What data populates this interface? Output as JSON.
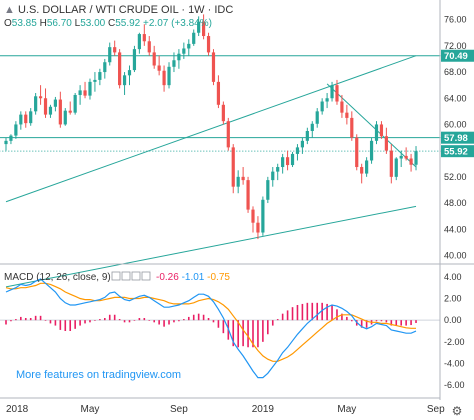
{
  "header": {
    "title": "U.S. DOLLAR / WTI CRUDE OIL · 1W · IDC",
    "ohlc": [
      {
        "k": "O",
        "v": "53.85"
      },
      {
        "k": "H",
        "v": "56.70"
      },
      {
        "k": "L",
        "v": "53.00"
      },
      {
        "k": "C",
        "v": "55.92"
      },
      {
        "k": "",
        "v": "+2.07 (+3.84%)"
      }
    ]
  },
  "macd_header": {
    "label": "MACD (12, 26, close, 9)",
    "values": [
      "-0.26",
      "-1.01",
      "-0.75"
    ]
  },
  "watermark": "More features on tradingview.com",
  "price_labels": [
    {
      "value": 70.49,
      "text": "70.49",
      "bg": "#26a69a"
    },
    {
      "value": 57.98,
      "text": "57.98",
      "bg": "#26a69a"
    },
    {
      "value": 55.92,
      "text": "55.92",
      "bg": "#26a69a"
    }
  ],
  "colors": {
    "up": "#26a69a",
    "down": "#ef5350",
    "trendline": "#26a69a",
    "macd": "#2196f3",
    "signal": "#ff9800",
    "hist": "#e91e63",
    "axis_text": "#333333"
  },
  "chart_data": [
    {
      "type": "candlestick",
      "title": "U.S. DOLLAR / WTI CRUDE OIL",
      "timeframe": "1W",
      "x": [
        "2018",
        "May",
        "Sep",
        "2019",
        "May",
        "Sep"
      ],
      "ylim": [
        39,
        79
      ],
      "yticks": [
        40,
        44,
        48,
        52,
        56,
        60,
        64,
        68,
        72,
        76
      ],
      "ohlc": [
        [
          57.0,
          58.0,
          56.0,
          57.5
        ],
        [
          57.5,
          58.5,
          57.0,
          58.3
        ],
        [
          58.3,
          60.5,
          57.8,
          60.0
        ],
        [
          60.0,
          62.0,
          59.2,
          61.5
        ],
        [
          61.5,
          62.0,
          59.5,
          60.2
        ],
        [
          60.2,
          62.5,
          59.8,
          62.0
        ],
        [
          62.0,
          64.8,
          61.5,
          64.3
        ],
        [
          64.3,
          66.0,
          63.0,
          64.0
        ],
        [
          64.0,
          65.5,
          61.0,
          61.5
        ],
        [
          61.5,
          63.0,
          61.0,
          62.7
        ],
        [
          62.7,
          64.2,
          62.0,
          63.8
        ],
        [
          63.8,
          65.0,
          59.5,
          60.0
        ],
        [
          60.0,
          62.5,
          59.8,
          62.1
        ],
        [
          62.1,
          63.5,
          61.5,
          61.8
        ],
        [
          61.8,
          64.8,
          61.5,
          64.5
        ],
        [
          64.5,
          66.0,
          63.0,
          65.2
        ],
        [
          65.2,
          66.5,
          64.0,
          64.4
        ],
        [
          64.4,
          67.0,
          63.8,
          66.5
        ],
        [
          66.5,
          68.0,
          65.0,
          66.8
        ],
        [
          66.8,
          68.5,
          66.0,
          68.0
        ],
        [
          68.0,
          70.0,
          67.0,
          69.5
        ],
        [
          69.5,
          72.5,
          69.0,
          71.8
        ],
        [
          71.8,
          72.8,
          70.5,
          71.0
        ],
        [
          71.0,
          71.5,
          65.5,
          66.0
        ],
        [
          66.0,
          68.0,
          64.5,
          67.5
        ],
        [
          67.5,
          69.0,
          66.0,
          68.3
        ],
        [
          68.3,
          72.0,
          68.0,
          71.5
        ],
        [
          71.5,
          74.0,
          70.8,
          73.8
        ],
        [
          73.8,
          75.3,
          72.0,
          72.7
        ],
        [
          72.7,
          73.5,
          70.5,
          71.0
        ],
        [
          71.0,
          72.0,
          68.5,
          69.0
        ],
        [
          69.0,
          70.5,
          67.5,
          68.2
        ],
        [
          68.2,
          69.0,
          65.0,
          66.0
        ],
        [
          66.0,
          69.5,
          65.5,
          68.8
        ],
        [
          68.8,
          71.0,
          68.0,
          69.8
        ],
        [
          69.8,
          71.5,
          68.5,
          70.8
        ],
        [
          70.8,
          72.5,
          70.0,
          71.6
        ],
        [
          71.6,
          73.0,
          70.5,
          72.3
        ],
        [
          72.3,
          74.5,
          72.0,
          74.0
        ],
        [
          74.0,
          76.5,
          73.5,
          75.7
        ],
        [
          75.7,
          76.8,
          73.0,
          73.5
        ],
        [
          73.5,
          74.0,
          70.5,
          71.0
        ],
        [
          71.0,
          71.5,
          66.0,
          66.5
        ],
        [
          66.5,
          67.5,
          62.5,
          63.0
        ],
        [
          63.0,
          63.5,
          60.0,
          60.5
        ],
        [
          60.5,
          61.0,
          56.0,
          56.5
        ],
        [
          56.5,
          57.0,
          49.5,
          50.5
        ],
        [
          50.5,
          53.0,
          49.5,
          52.0
        ],
        [
          52.0,
          53.5,
          50.8,
          51.5
        ],
        [
          51.5,
          52.0,
          46.5,
          47.0
        ],
        [
          47.0,
          47.5,
          43.5,
          45.0
        ],
        [
          45.0,
          46.0,
          42.5,
          43.5
        ],
        [
          43.5,
          49.0,
          43.0,
          48.5
        ],
        [
          48.5,
          52.0,
          48.0,
          51.5
        ],
        [
          51.5,
          53.5,
          50.5,
          52.8
        ],
        [
          52.8,
          54.0,
          51.5,
          53.5
        ],
        [
          53.5,
          55.5,
          52.5,
          55.0
        ],
        [
          55.0,
          56.0,
          53.0,
          53.8
        ],
        [
          53.8,
          55.8,
          53.5,
          55.5
        ],
        [
          55.5,
          57.0,
          54.5,
          56.5
        ],
        [
          56.5,
          58.0,
          55.5,
          57.5
        ],
        [
          57.5,
          59.5,
          57.0,
          59.0
        ],
        [
          59.0,
          60.5,
          58.0,
          60.1
        ],
        [
          60.1,
          62.5,
          59.5,
          62.0
        ],
        [
          62.0,
          64.0,
          61.5,
          63.5
        ],
        [
          63.5,
          64.8,
          62.5,
          64.0
        ],
        [
          64.0,
          66.5,
          63.5,
          66.0
        ],
        [
          66.0,
          66.8,
          63.0,
          63.5
        ],
        [
          63.5,
          64.5,
          61.0,
          61.8
        ],
        [
          61.8,
          63.0,
          60.0,
          61.0
        ],
        [
          61.0,
          62.0,
          57.5,
          58.0
        ],
        [
          58.0,
          58.5,
          53.0,
          53.5
        ],
        [
          53.5,
          54.0,
          51.0,
          52.5
        ],
        [
          52.5,
          55.0,
          52.0,
          54.5
        ],
        [
          54.5,
          58.0,
          54.0,
          57.5
        ],
        [
          57.5,
          60.5,
          57.0,
          60.0
        ],
        [
          60.0,
          60.5,
          57.8,
          58.2
        ],
        [
          58.2,
          59.5,
          55.5,
          56.0
        ],
        [
          56.0,
          57.0,
          51.0,
          52.0
        ],
        [
          52.0,
          55.0,
          51.5,
          54.8
        ],
        [
          54.8,
          56.0,
          53.5,
          55.2
        ],
        [
          55.2,
          56.5,
          54.5,
          54.8
        ],
        [
          54.8,
          55.5,
          52.8,
          53.85
        ],
        [
          53.85,
          56.7,
          53.0,
          55.92
        ]
      ],
      "trendlines": [
        {
          "name": "upper-channel",
          "from": {
            "i": 0,
            "v": 48.2
          },
          "to": {
            "i": 83,
            "v": 70.5
          }
        },
        {
          "name": "lower-channel",
          "from": {
            "i": 0,
            "v": 35.2
          },
          "to": {
            "i": 83,
            "v": 47.5
          }
        },
        {
          "name": "descending-resistance",
          "from": {
            "i": 65,
            "v": 66.2
          },
          "to": {
            "i": 83,
            "v": 53.5
          }
        },
        {
          "name": "horizontal-70.49",
          "from": {
            "i": -5,
            "v": 70.49
          },
          "to": {
            "i": 88,
            "v": 70.49
          }
        },
        {
          "name": "horizontal-57.98",
          "from": {
            "i": -5,
            "v": 57.98
          },
          "to": {
            "i": 88,
            "v": 57.98
          }
        },
        {
          "name": "horizontal-55.92-dotted",
          "from": {
            "i": -5,
            "v": 55.92
          },
          "to": {
            "i": 88,
            "v": 55.92
          }
        }
      ]
    },
    {
      "type": "line",
      "title": "MACD (12, 26, close, 9)",
      "ylim": [
        -7,
        5
      ],
      "yticks": [
        -6,
        -4,
        -2,
        0,
        2,
        4
      ],
      "series": [
        {
          "name": "MACD",
          "values": [
            2.6,
            2.8,
            3.0,
            3.3,
            3.2,
            3.3,
            3.6,
            3.8,
            3.4,
            3.0,
            2.6,
            2.0,
            1.6,
            1.4,
            1.4,
            1.5,
            1.6,
            1.7,
            1.8,
            1.9,
            2.1,
            2.5,
            2.6,
            2.2,
            1.9,
            1.8,
            2.0,
            2.2,
            2.3,
            2.1,
            1.8,
            1.5,
            1.2,
            1.2,
            1.3,
            1.4,
            1.6,
            1.8,
            2.1,
            2.4,
            2.4,
            2.2,
            1.7,
            1.0,
            0.2,
            -0.8,
            -2.0,
            -2.7,
            -3.3,
            -4.0,
            -4.7,
            -5.3,
            -5.3,
            -4.9,
            -4.3,
            -3.7,
            -3.0,
            -2.5,
            -1.9,
            -1.3,
            -0.8,
            -0.3,
            0.1,
            0.5,
            0.9,
            1.2,
            1.4,
            1.3,
            1.1,
            0.8,
            0.4,
            -0.2,
            -0.6,
            -0.8,
            -0.6,
            -0.3,
            -0.4,
            -0.5,
            -0.9,
            -1.0,
            -1.1,
            -1.2,
            -1.2,
            -1.01
          ]
        },
        {
          "name": "Signal",
          "values": [
            3.0,
            2.9,
            2.9,
            3.0,
            3.0,
            3.1,
            3.2,
            3.4,
            3.4,
            3.3,
            3.1,
            2.9,
            2.6,
            2.4,
            2.2,
            2.0,
            1.9,
            1.9,
            1.8,
            1.8,
            1.9,
            2.0,
            2.1,
            2.1,
            2.1,
            2.0,
            2.0,
            2.0,
            2.1,
            2.1,
            2.0,
            1.9,
            1.8,
            1.6,
            1.5,
            1.5,
            1.5,
            1.5,
            1.6,
            1.8,
            1.9,
            2.0,
            1.9,
            1.7,
            1.4,
            1.0,
            0.4,
            -0.2,
            -0.9,
            -1.5,
            -2.2,
            -2.8,
            -3.3,
            -3.6,
            -3.8,
            -3.8,
            -3.6,
            -3.4,
            -3.1,
            -2.7,
            -2.3,
            -1.9,
            -1.5,
            -1.1,
            -0.7,
            -0.3,
            0.0,
            0.3,
            0.5,
            0.5,
            0.5,
            0.3,
            0.1,
            -0.1,
            -0.2,
            -0.2,
            -0.3,
            -0.3,
            -0.4,
            -0.5,
            -0.6,
            -0.7,
            -0.75,
            -0.75
          ]
        }
      ]
    }
  ],
  "x_axis_labels": [
    {
      "i": 0,
      "text": "2018"
    },
    {
      "i": 17,
      "text": "May"
    },
    {
      "i": 35,
      "text": "Sep"
    },
    {
      "i": 52,
      "text": "2019"
    },
    {
      "i": 69,
      "text": "May"
    },
    {
      "i": 87,
      "text": "Sep"
    }
  ]
}
